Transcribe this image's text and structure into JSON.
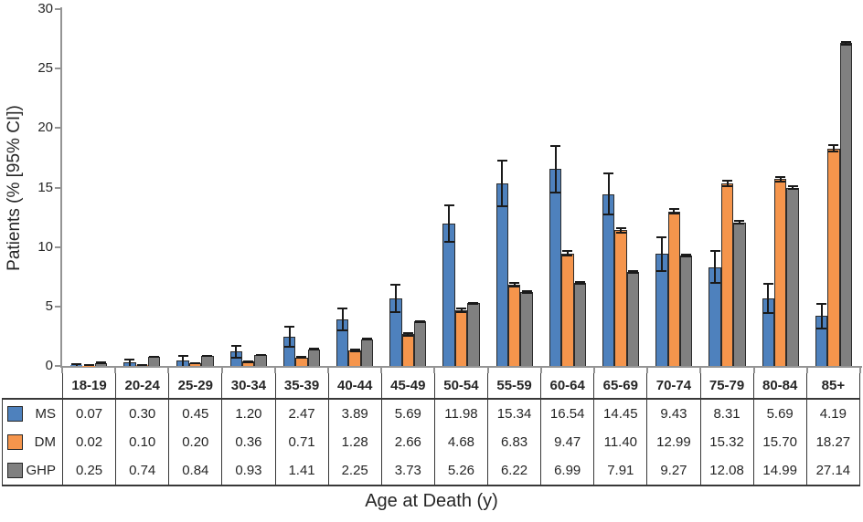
{
  "chart_data": {
    "type": "bar",
    "title": "",
    "xlabel": "Age at Death (y)",
    "ylabel": "Patients (% [95% CI])",
    "ylim": [
      0,
      30
    ],
    "yticks": [
      0,
      5,
      10,
      15,
      20,
      25,
      30
    ],
    "grid": false,
    "error_bars": "95% CI, black caps",
    "legend_position": "left column of data table below plot",
    "categories": [
      "18-19",
      "20-24",
      "25-29",
      "30-34",
      "35-39",
      "40-44",
      "45-49",
      "50-54",
      "55-59",
      "60-64",
      "65-69",
      "70-74",
      "75-79",
      "80-84",
      "85+"
    ],
    "series": [
      {
        "name": "MS",
        "color": "#4E81BD",
        "values": [
          0.07,
          0.3,
          0.45,
          1.2,
          2.47,
          3.89,
          5.69,
          11.98,
          15.34,
          16.54,
          14.45,
          9.43,
          8.31,
          5.69,
          4.19
        ],
        "ci": [
          0.15,
          0.35,
          0.5,
          0.55,
          0.9,
          1.0,
          1.2,
          1.6,
          2.0,
          2.0,
          1.8,
          1.5,
          1.4,
          1.3,
          1.1
        ]
      },
      {
        "name": "DM",
        "color": "#F5954C",
        "values": [
          0.02,
          0.1,
          0.2,
          0.36,
          0.71,
          1.28,
          2.66,
          4.68,
          6.83,
          9.47,
          11.4,
          12.99,
          15.32,
          15.7,
          18.27
        ],
        "ci": [
          0.03,
          0.06,
          0.08,
          0.1,
          0.12,
          0.15,
          0.18,
          0.2,
          0.22,
          0.25,
          0.25,
          0.28,
          0.3,
          0.3,
          0.35
        ]
      },
      {
        "name": "GHP",
        "color": "#808080",
        "values": [
          0.25,
          0.74,
          0.84,
          0.93,
          1.41,
          2.25,
          3.73,
          5.26,
          6.22,
          6.99,
          7.91,
          9.27,
          12.08,
          14.99,
          27.14
        ],
        "ci": [
          0.05,
          0.08,
          0.08,
          0.08,
          0.1,
          0.1,
          0.12,
          0.12,
          0.13,
          0.14,
          0.15,
          0.15,
          0.18,
          0.18,
          0.2
        ]
      }
    ]
  },
  "colors": {
    "axis": "#949494",
    "bar_border": "#2b2b2b",
    "error_bar": "#1a1a1a",
    "table_border": "#383838",
    "text": "#262626",
    "background": "#ffffff"
  }
}
